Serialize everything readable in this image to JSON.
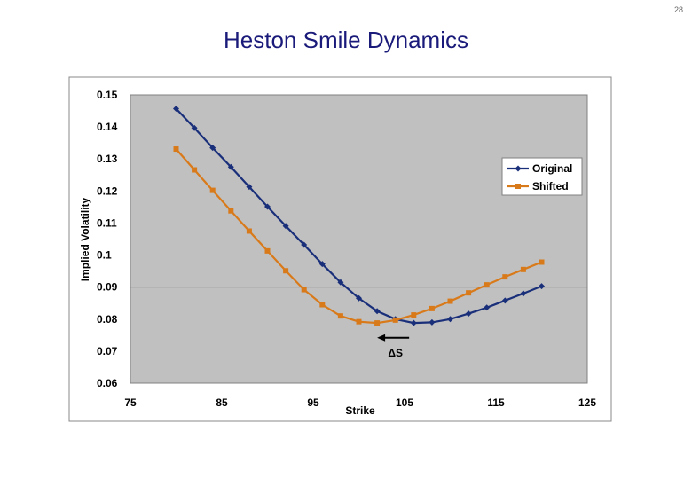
{
  "slide": {
    "number": "28",
    "title": "Heston Smile Dynamics"
  },
  "chart_data": {
    "type": "line",
    "title": "",
    "xlabel": "Strike",
    "ylabel": "Implied Volatility",
    "xlim": [
      75,
      125
    ],
    "ylim": [
      0.06,
      0.15
    ],
    "x_ticks": [
      75,
      85,
      95,
      105,
      115,
      125
    ],
    "x_tick_labels": [
      "75",
      "85",
      "95",
      "105",
      "115",
      "125"
    ],
    "y_ticks": [
      0.06,
      0.07,
      0.08,
      0.09,
      0.1,
      0.11,
      0.12,
      0.13,
      0.14,
      0.15
    ],
    "y_tick_labels": [
      "0.06",
      "0.07",
      "0.08",
      "0.09",
      "0.1",
      "0.11",
      "0.12",
      "0.13",
      "0.14",
      "0.15"
    ],
    "gridlines": {
      "horizontal": [
        0.09
      ]
    },
    "legend_position": "top-right",
    "series": [
      {
        "name": "Original",
        "color": "#1a2f7a",
        "marker": "diamond",
        "x": [
          80,
          82,
          84,
          86,
          88,
          90,
          92,
          94,
          96,
          98,
          100,
          102,
          104,
          106,
          108,
          110,
          112,
          114,
          116,
          118,
          120
        ],
        "values": [
          0.1457,
          0.1397,
          0.1335,
          0.1275,
          0.1213,
          0.1151,
          0.1091,
          0.1032,
          0.0972,
          0.0915,
          0.0865,
          0.0825,
          0.08,
          0.0788,
          0.079,
          0.08,
          0.0817,
          0.0836,
          0.0858,
          0.088,
          0.0903
        ]
      },
      {
        "name": "Shifted",
        "color": "#d97a1a",
        "marker": "square",
        "x": [
          80,
          82,
          84,
          86,
          88,
          90,
          92,
          94,
          96,
          98,
          100,
          102,
          104,
          106,
          108,
          110,
          112,
          114,
          116,
          118,
          120
        ],
        "values": [
          0.1331,
          0.1266,
          0.1202,
          0.1138,
          0.1075,
          0.1013,
          0.0951,
          0.0892,
          0.0845,
          0.081,
          0.0792,
          0.0788,
          0.0797,
          0.0813,
          0.0833,
          0.0856,
          0.0882,
          0.0907,
          0.0932,
          0.0955,
          0.0978
        ]
      }
    ],
    "annotation": {
      "label": "ΔS",
      "arrow_direction": "left",
      "arrow_from": {
        "x": 105.5,
        "y": 0.0742
      },
      "arrow_to": {
        "x": 102,
        "y": 0.0742
      },
      "label_at": {
        "x": 104,
        "y": 0.07
      }
    }
  }
}
